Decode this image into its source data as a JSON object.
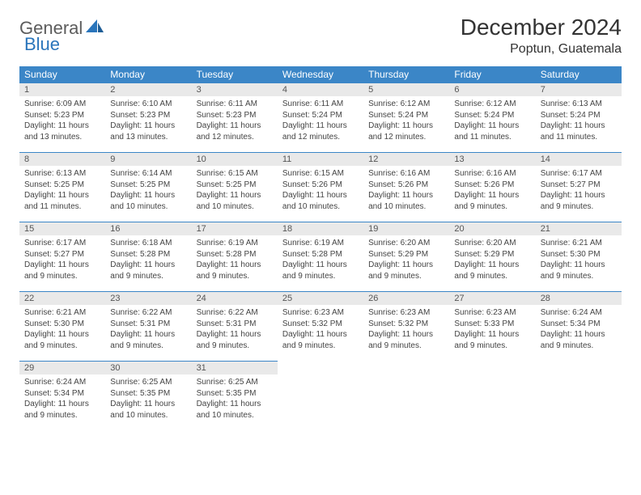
{
  "logo": {
    "general": "General",
    "blue": "Blue"
  },
  "title": "December 2024",
  "location": "Poptun, Guatemala",
  "colors": {
    "header_bg": "#3b86c7",
    "header_text": "#ffffff",
    "daynum_bg": "#e9e9e9",
    "day_border": "#3b86c7",
    "logo_gray": "#5c5c5c",
    "logo_blue": "#2a75bb",
    "body_text": "#444444"
  },
  "day_headers": [
    "Sunday",
    "Monday",
    "Tuesday",
    "Wednesday",
    "Thursday",
    "Friday",
    "Saturday"
  ],
  "weeks": [
    [
      {
        "n": "1",
        "sr": "Sunrise: 6:09 AM",
        "ss": "Sunset: 5:23 PM",
        "d1": "Daylight: 11 hours",
        "d2": "and 13 minutes."
      },
      {
        "n": "2",
        "sr": "Sunrise: 6:10 AM",
        "ss": "Sunset: 5:23 PM",
        "d1": "Daylight: 11 hours",
        "d2": "and 13 minutes."
      },
      {
        "n": "3",
        "sr": "Sunrise: 6:11 AM",
        "ss": "Sunset: 5:23 PM",
        "d1": "Daylight: 11 hours",
        "d2": "and 12 minutes."
      },
      {
        "n": "4",
        "sr": "Sunrise: 6:11 AM",
        "ss": "Sunset: 5:24 PM",
        "d1": "Daylight: 11 hours",
        "d2": "and 12 minutes."
      },
      {
        "n": "5",
        "sr": "Sunrise: 6:12 AM",
        "ss": "Sunset: 5:24 PM",
        "d1": "Daylight: 11 hours",
        "d2": "and 12 minutes."
      },
      {
        "n": "6",
        "sr": "Sunrise: 6:12 AM",
        "ss": "Sunset: 5:24 PM",
        "d1": "Daylight: 11 hours",
        "d2": "and 11 minutes."
      },
      {
        "n": "7",
        "sr": "Sunrise: 6:13 AM",
        "ss": "Sunset: 5:24 PM",
        "d1": "Daylight: 11 hours",
        "d2": "and 11 minutes."
      }
    ],
    [
      {
        "n": "8",
        "sr": "Sunrise: 6:13 AM",
        "ss": "Sunset: 5:25 PM",
        "d1": "Daylight: 11 hours",
        "d2": "and 11 minutes."
      },
      {
        "n": "9",
        "sr": "Sunrise: 6:14 AM",
        "ss": "Sunset: 5:25 PM",
        "d1": "Daylight: 11 hours",
        "d2": "and 10 minutes."
      },
      {
        "n": "10",
        "sr": "Sunrise: 6:15 AM",
        "ss": "Sunset: 5:25 PM",
        "d1": "Daylight: 11 hours",
        "d2": "and 10 minutes."
      },
      {
        "n": "11",
        "sr": "Sunrise: 6:15 AM",
        "ss": "Sunset: 5:26 PM",
        "d1": "Daylight: 11 hours",
        "d2": "and 10 minutes."
      },
      {
        "n": "12",
        "sr": "Sunrise: 6:16 AM",
        "ss": "Sunset: 5:26 PM",
        "d1": "Daylight: 11 hours",
        "d2": "and 10 minutes."
      },
      {
        "n": "13",
        "sr": "Sunrise: 6:16 AM",
        "ss": "Sunset: 5:26 PM",
        "d1": "Daylight: 11 hours",
        "d2": "and 9 minutes."
      },
      {
        "n": "14",
        "sr": "Sunrise: 6:17 AM",
        "ss": "Sunset: 5:27 PM",
        "d1": "Daylight: 11 hours",
        "d2": "and 9 minutes."
      }
    ],
    [
      {
        "n": "15",
        "sr": "Sunrise: 6:17 AM",
        "ss": "Sunset: 5:27 PM",
        "d1": "Daylight: 11 hours",
        "d2": "and 9 minutes."
      },
      {
        "n": "16",
        "sr": "Sunrise: 6:18 AM",
        "ss": "Sunset: 5:28 PM",
        "d1": "Daylight: 11 hours",
        "d2": "and 9 minutes."
      },
      {
        "n": "17",
        "sr": "Sunrise: 6:19 AM",
        "ss": "Sunset: 5:28 PM",
        "d1": "Daylight: 11 hours",
        "d2": "and 9 minutes."
      },
      {
        "n": "18",
        "sr": "Sunrise: 6:19 AM",
        "ss": "Sunset: 5:28 PM",
        "d1": "Daylight: 11 hours",
        "d2": "and 9 minutes."
      },
      {
        "n": "19",
        "sr": "Sunrise: 6:20 AM",
        "ss": "Sunset: 5:29 PM",
        "d1": "Daylight: 11 hours",
        "d2": "and 9 minutes."
      },
      {
        "n": "20",
        "sr": "Sunrise: 6:20 AM",
        "ss": "Sunset: 5:29 PM",
        "d1": "Daylight: 11 hours",
        "d2": "and 9 minutes."
      },
      {
        "n": "21",
        "sr": "Sunrise: 6:21 AM",
        "ss": "Sunset: 5:30 PM",
        "d1": "Daylight: 11 hours",
        "d2": "and 9 minutes."
      }
    ],
    [
      {
        "n": "22",
        "sr": "Sunrise: 6:21 AM",
        "ss": "Sunset: 5:30 PM",
        "d1": "Daylight: 11 hours",
        "d2": "and 9 minutes."
      },
      {
        "n": "23",
        "sr": "Sunrise: 6:22 AM",
        "ss": "Sunset: 5:31 PM",
        "d1": "Daylight: 11 hours",
        "d2": "and 9 minutes."
      },
      {
        "n": "24",
        "sr": "Sunrise: 6:22 AM",
        "ss": "Sunset: 5:31 PM",
        "d1": "Daylight: 11 hours",
        "d2": "and 9 minutes."
      },
      {
        "n": "25",
        "sr": "Sunrise: 6:23 AM",
        "ss": "Sunset: 5:32 PM",
        "d1": "Daylight: 11 hours",
        "d2": "and 9 minutes."
      },
      {
        "n": "26",
        "sr": "Sunrise: 6:23 AM",
        "ss": "Sunset: 5:32 PM",
        "d1": "Daylight: 11 hours",
        "d2": "and 9 minutes."
      },
      {
        "n": "27",
        "sr": "Sunrise: 6:23 AM",
        "ss": "Sunset: 5:33 PM",
        "d1": "Daylight: 11 hours",
        "d2": "and 9 minutes."
      },
      {
        "n": "28",
        "sr": "Sunrise: 6:24 AM",
        "ss": "Sunset: 5:34 PM",
        "d1": "Daylight: 11 hours",
        "d2": "and 9 minutes."
      }
    ],
    [
      {
        "n": "29",
        "sr": "Sunrise: 6:24 AM",
        "ss": "Sunset: 5:34 PM",
        "d1": "Daylight: 11 hours",
        "d2": "and 9 minutes."
      },
      {
        "n": "30",
        "sr": "Sunrise: 6:25 AM",
        "ss": "Sunset: 5:35 PM",
        "d1": "Daylight: 11 hours",
        "d2": "and 10 minutes."
      },
      {
        "n": "31",
        "sr": "Sunrise: 6:25 AM",
        "ss": "Sunset: 5:35 PM",
        "d1": "Daylight: 11 hours",
        "d2": "and 10 minutes."
      },
      null,
      null,
      null,
      null
    ]
  ]
}
